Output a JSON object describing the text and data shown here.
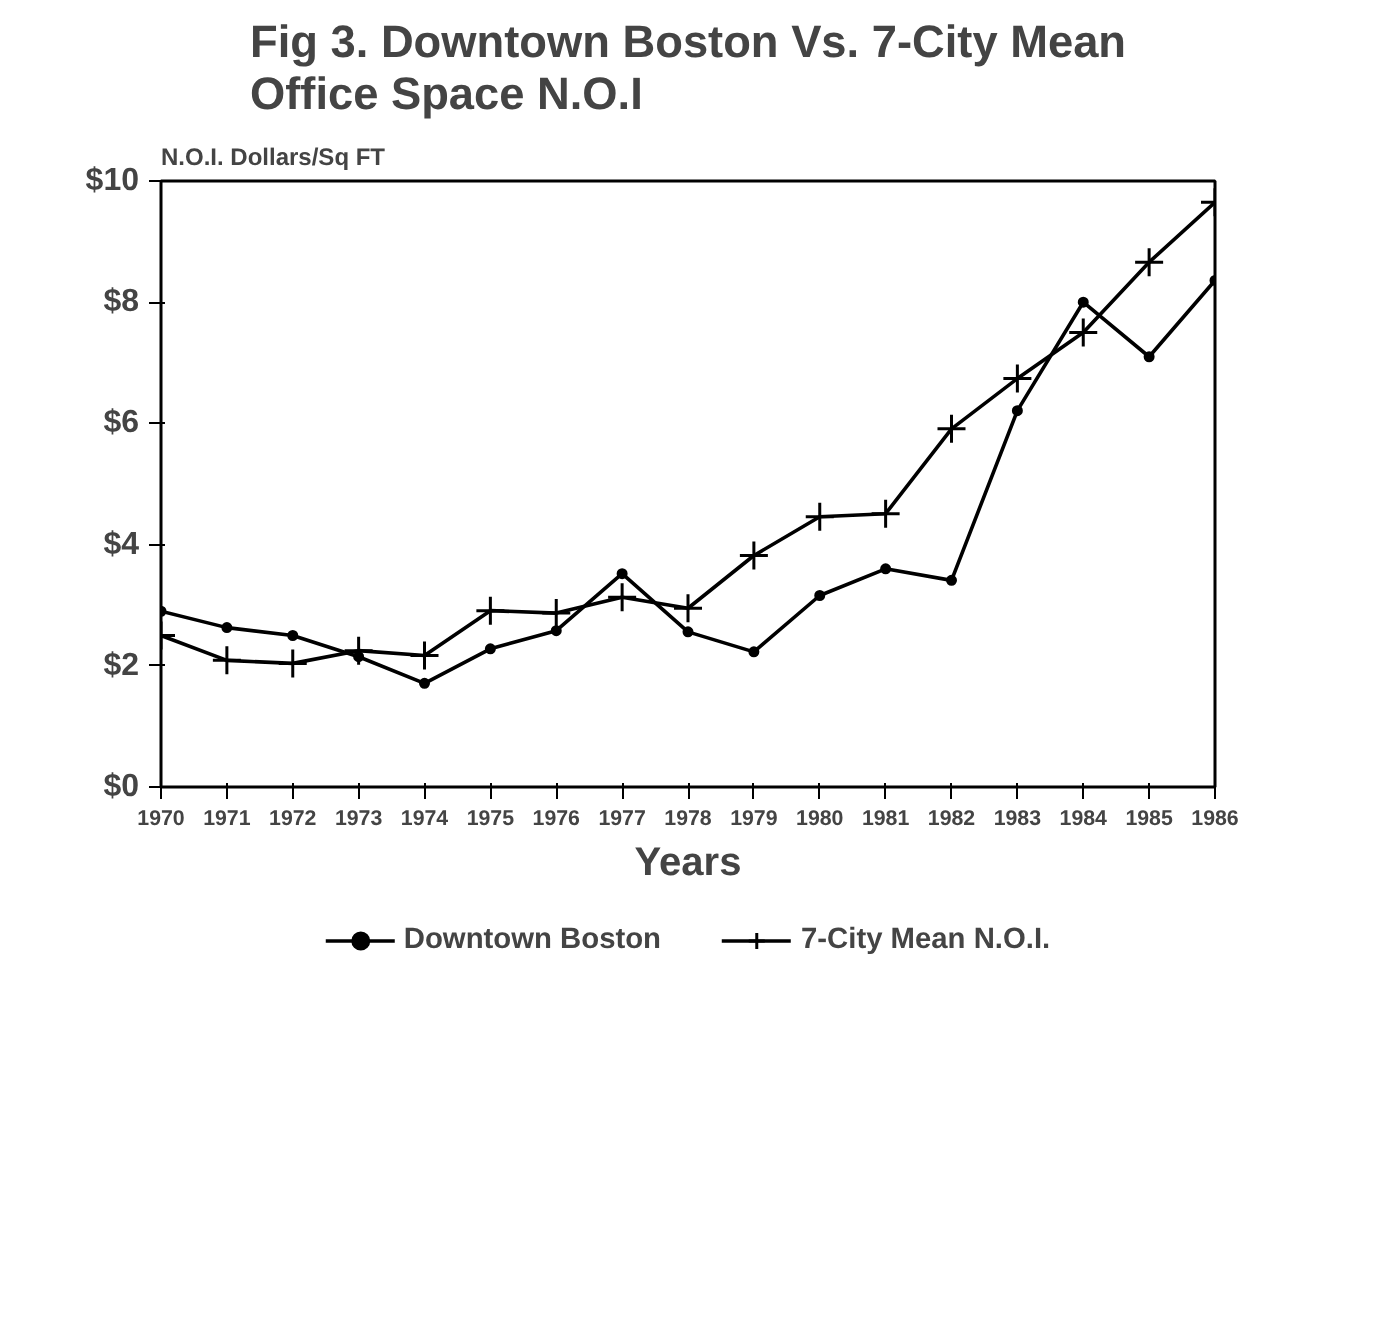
{
  "chart_data": {
    "type": "line",
    "title": "Fig 3. Downtown Boston Vs. 7-City Mean\nOffice Space N.O.I",
    "xlabel": "Years",
    "ylabel": "N.O.I. Dollars/Sq FT",
    "x": [
      1970,
      1971,
      1972,
      1973,
      1974,
      1975,
      1976,
      1977,
      1978,
      1979,
      1980,
      1981,
      1982,
      1983,
      1984,
      1985,
      1986
    ],
    "series": [
      {
        "name": "Downtown Boston",
        "color": "#000000",
        "marker": "circle",
        "values": [
          2.9,
          2.63,
          2.5,
          2.15,
          1.71,
          2.28,
          2.58,
          3.52,
          2.56,
          2.23,
          3.16,
          3.6,
          3.41,
          6.21,
          8.0,
          7.1,
          8.36
        ]
      },
      {
        "name": "7-City Mean N.O.I.",
        "color": "#000000",
        "marker": "cross",
        "values": [
          2.5,
          2.09,
          2.04,
          2.25,
          2.17,
          2.91,
          2.87,
          3.13,
          2.95,
          3.82,
          4.46,
          4.51,
          5.91,
          6.74,
          7.5,
          8.66,
          9.65
        ]
      }
    ],
    "xlim": [
      1970,
      1986
    ],
    "xticks": [
      1970,
      1971,
      1972,
      1973,
      1974,
      1975,
      1976,
      1977,
      1978,
      1979,
      1980,
      1981,
      1982,
      1983,
      1984,
      1985,
      1986
    ],
    "ylim": [
      0,
      10
    ],
    "yticks": [
      {
        "value": 0,
        "label": "$0"
      },
      {
        "value": 2,
        "label": "$2"
      },
      {
        "value": 4,
        "label": "$4"
      },
      {
        "value": 6,
        "label": "$6"
      },
      {
        "value": 8,
        "label": "$8"
      },
      {
        "value": 10,
        "label": "$10"
      }
    ],
    "grid": false,
    "legend": "bottom",
    "line_style": "solid"
  }
}
